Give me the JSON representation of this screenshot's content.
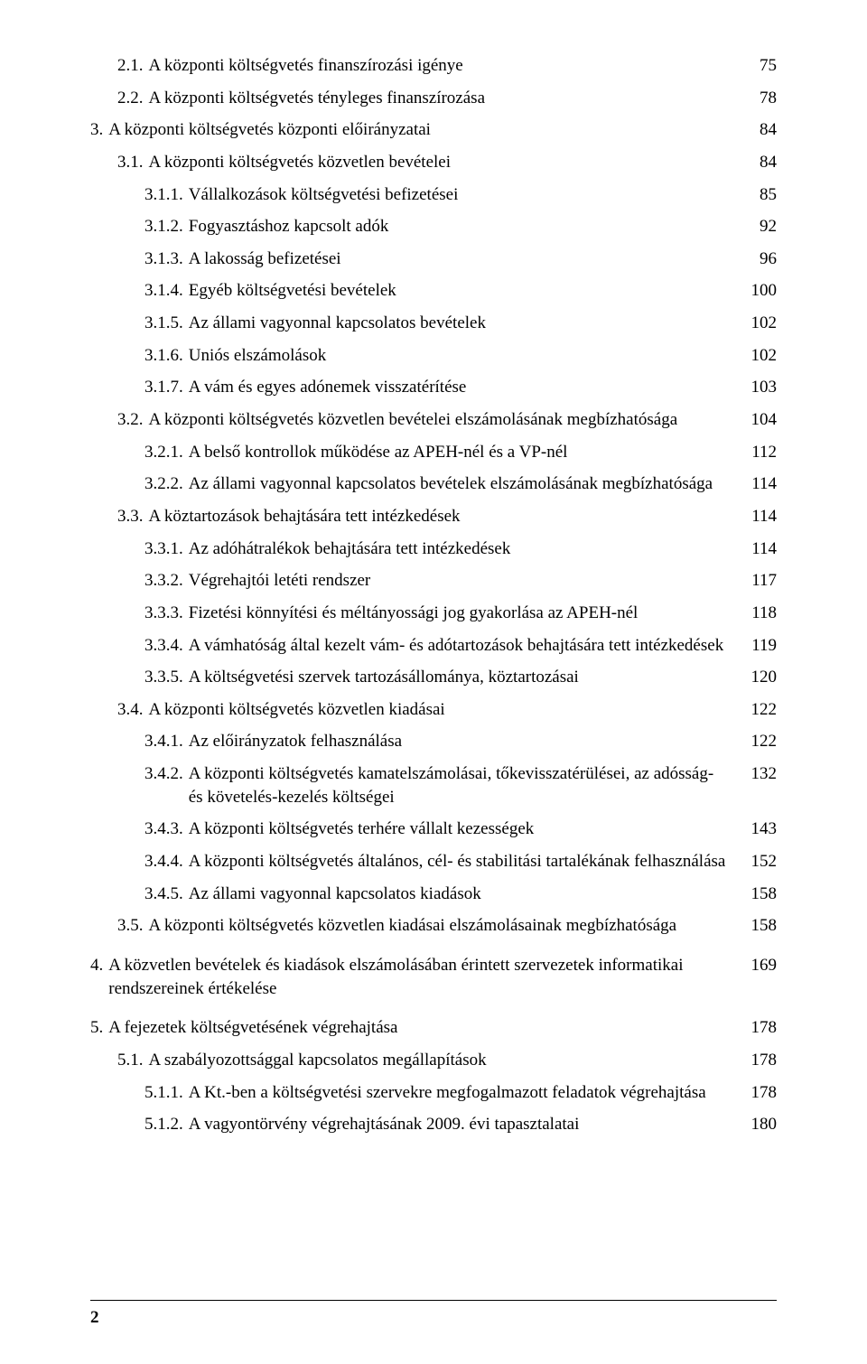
{
  "entries": [
    {
      "level": 2,
      "num": "2.1.",
      "title": "A központi költségvetés finanszírozási igénye",
      "page": "75"
    },
    {
      "level": 2,
      "num": "2.2.",
      "title": "A központi költségvetés tényleges finanszírozása",
      "page": "78"
    },
    {
      "level": 1,
      "num": "3.",
      "title": "A központi költségvetés központi előirányzatai",
      "page": "84"
    },
    {
      "level": 2,
      "num": "3.1.",
      "title": "A központi költségvetés közvetlen bevételei",
      "page": "84"
    },
    {
      "level": 3,
      "num": "3.1.1.",
      "title": "Vállalkozások költségvetési befizetései",
      "page": "85"
    },
    {
      "level": 3,
      "num": "3.1.2.",
      "title": "Fogyasztáshoz kapcsolt adók",
      "page": "92"
    },
    {
      "level": 3,
      "num": "3.1.3.",
      "title": "A lakosság befizetései",
      "page": "96"
    },
    {
      "level": 3,
      "num": "3.1.4.",
      "title": "Egyéb költségvetési bevételek",
      "page": "100"
    },
    {
      "level": 3,
      "num": "3.1.5.",
      "title": "Az állami vagyonnal kapcsolatos bevételek",
      "page": "102"
    },
    {
      "level": 3,
      "num": "3.1.6.",
      "title": "Uniós elszámolások",
      "page": "102"
    },
    {
      "level": 3,
      "num": "3.1.7.",
      "title": "A vám és egyes adónemek visszatérítése",
      "page": "103"
    },
    {
      "level": 2,
      "num": "3.2.",
      "title": "A központi költségvetés közvetlen bevételei elszámolásának megbízhatósága",
      "page": "104"
    },
    {
      "level": 3,
      "num": "3.2.1.",
      "title": "A belső kontrollok működése az APEH-nél és a VP-nél",
      "page": "112"
    },
    {
      "level": 3,
      "num": "3.2.2.",
      "title": "Az állami vagyonnal kapcsolatos bevételek elszámolásának megbízhatósága",
      "page": "114",
      "contIndent": true
    },
    {
      "level": 2,
      "num": "3.3.",
      "title": "A köztartozások behajtására tett intézkedések",
      "page": "114"
    },
    {
      "level": 3,
      "num": "3.3.1.",
      "title": "Az adóhátralékok behajtására tett intézkedések",
      "page": "114"
    },
    {
      "level": 3,
      "num": "3.3.2.",
      "title": "Végrehajtói letéti rendszer",
      "page": "117"
    },
    {
      "level": 3,
      "num": "3.3.3.",
      "title": "Fizetési könnyítési és méltányossági jog gyakorlása az APEH-nél",
      "page": "118",
      "contIndent": true
    },
    {
      "level": 3,
      "num": "3.3.4.",
      "title": "A vámhatóság által kezelt vám- és adótartozások behajtására tett intézkedések",
      "page": "119",
      "contIndent": true
    },
    {
      "level": 3,
      "num": "3.3.5.",
      "title": "A költségvetési szervek tartozásállománya, köztartozásai",
      "page": "120"
    },
    {
      "level": 2,
      "num": "3.4.",
      "title": "A központi költségvetés közvetlen kiadásai",
      "page": "122"
    },
    {
      "level": 3,
      "num": "3.4.1.",
      "title": "Az előirányzatok felhasználása",
      "page": "122"
    },
    {
      "level": 3,
      "num": "3.4.2.",
      "title": "A központi költségvetés kamatelszámolásai, tőkevisszatérülései, az adósság- és követelés-kezelés költségei",
      "page": "132",
      "contIndent": true
    },
    {
      "level": 3,
      "num": "3.4.3.",
      "title": "A központi költségvetés terhére vállalt kezességek",
      "page": "143"
    },
    {
      "level": 3,
      "num": "3.4.4.",
      "title": "A központi költségvetés általános, cél- és stabilitási tartalékának felhasználása",
      "page": "152",
      "contIndent": true
    },
    {
      "level": 3,
      "num": "3.4.5.",
      "title": "Az állami vagyonnal kapcsolatos kiadások",
      "page": "158"
    },
    {
      "level": 2,
      "num": "3.5.",
      "title": "A központi költségvetés közvetlen kiadásai elszámolásainak megbízhatósága",
      "page": "158"
    },
    {
      "level": 1,
      "num": "4.",
      "title": "A közvetlen bevételek és kiadások elszámolásában érintett szervezetek informatikai rendszereinek értékelése",
      "page": "169",
      "preGap": true
    },
    {
      "level": 1,
      "num": "5.",
      "title": "A fejezetek költségvetésének végrehajtása",
      "page": "178",
      "preGap": true
    },
    {
      "level": 2,
      "num": "5.1.",
      "title": "A szabályozottsággal kapcsolatos megállapítások",
      "page": "178"
    },
    {
      "level": 3,
      "num": "5.1.1.",
      "title": "A Kt.-ben a költségvetési szervekre megfogalmazott feladatok végrehajtása",
      "page": "178",
      "contIndent": true
    },
    {
      "level": 3,
      "num": "5.1.2.",
      "title": "A vagyontörvény végrehajtásának 2009. évi tapasztalatai",
      "page": "180"
    }
  ],
  "pageNumber": "2"
}
